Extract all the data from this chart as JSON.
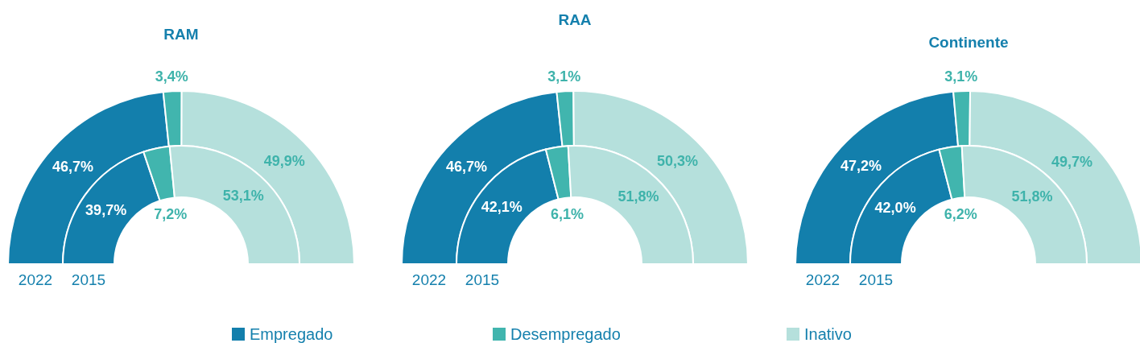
{
  "chart_data": [
    {
      "type": "donut",
      "title": "RAM",
      "colors": [
        "#137fac",
        "#41b5ae",
        "#b5e0dc"
      ],
      "series": [
        {
          "name": "2022",
          "values": [
            46.7,
            3.4,
            49.9
          ],
          "value_labels": [
            "46,7%",
            "3,4%",
            "49,9%"
          ]
        },
        {
          "name": "2015",
          "values": [
            39.7,
            7.2,
            53.1
          ],
          "value_labels": [
            "39,7%",
            "7,2%",
            "53,1%"
          ]
        }
      ]
    },
    {
      "type": "donut",
      "title": "RAA",
      "categories": [
        "Empregado",
        "Desempregado",
        "Inativo"
      ],
      "colors": [
        "#137fac",
        "#41b5ae",
        "#b5e0dc"
      ],
      "legend": "bottom",
      "series": [
        {
          "name": "2022",
          "values": [
            46.7,
            3.1,
            50.3
          ],
          "value_labels": [
            "46,7%",
            "3,1%",
            "50,3%"
          ]
        },
        {
          "name": "2015",
          "values": [
            42.1,
            6.1,
            51.8
          ],
          "value_labels": [
            "42,1%",
            "6,1%",
            "51,8%"
          ]
        }
      ]
    },
    {
      "type": "donut",
      "title": "Continente",
      "colors": [
        "#137fac",
        "#41b5ae",
        "#b5e0dc"
      ],
      "series": [
        {
          "name": "2022",
          "values": [
            47.2,
            3.1,
            49.7
          ],
          "value_labels": [
            "47,2%",
            "3,1%",
            "49,7%"
          ]
        },
        {
          "name": "2015",
          "values": [
            42.0,
            6.2,
            51.8
          ],
          "value_labels": [
            "42,0%",
            "6,2%",
            "51,8%"
          ]
        }
      ]
    }
  ]
}
